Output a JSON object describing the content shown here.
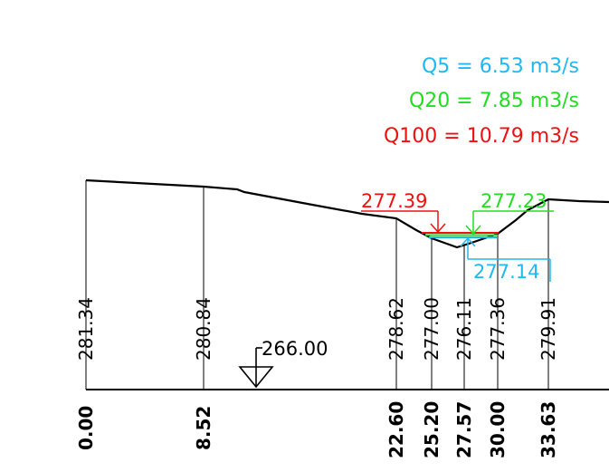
{
  "flows": [
    {
      "label": "Q5 = 6.53 m3/s",
      "color": "#1fb8f0"
    },
    {
      "label": "Q20 = 7.85 m3/s",
      "color": "#22dd22"
    },
    {
      "label": "Q100 = 10.79 m3/s",
      "color": "#ee1111"
    }
  ],
  "datum": {
    "label": "266.00"
  },
  "stations": [
    {
      "distance": "0.00",
      "elevation": "281.34"
    },
    {
      "distance": "8.52",
      "elevation": "280.84"
    },
    {
      "distance": "22.60",
      "elevation": "278.62"
    },
    {
      "distance": "25.20",
      "elevation": "277.00"
    },
    {
      "distance": "27.57",
      "elevation": "276.11"
    },
    {
      "distance": "30.00",
      "elevation": "277.36"
    },
    {
      "distance": "33.63",
      "elevation": "279.91"
    }
  ],
  "water_levels": [
    {
      "value": "277.39",
      "color": "#ee1111"
    },
    {
      "value": "277.23",
      "color": "#22dd22"
    },
    {
      "value": "277.14",
      "color": "#1fb8f0"
    }
  ]
}
